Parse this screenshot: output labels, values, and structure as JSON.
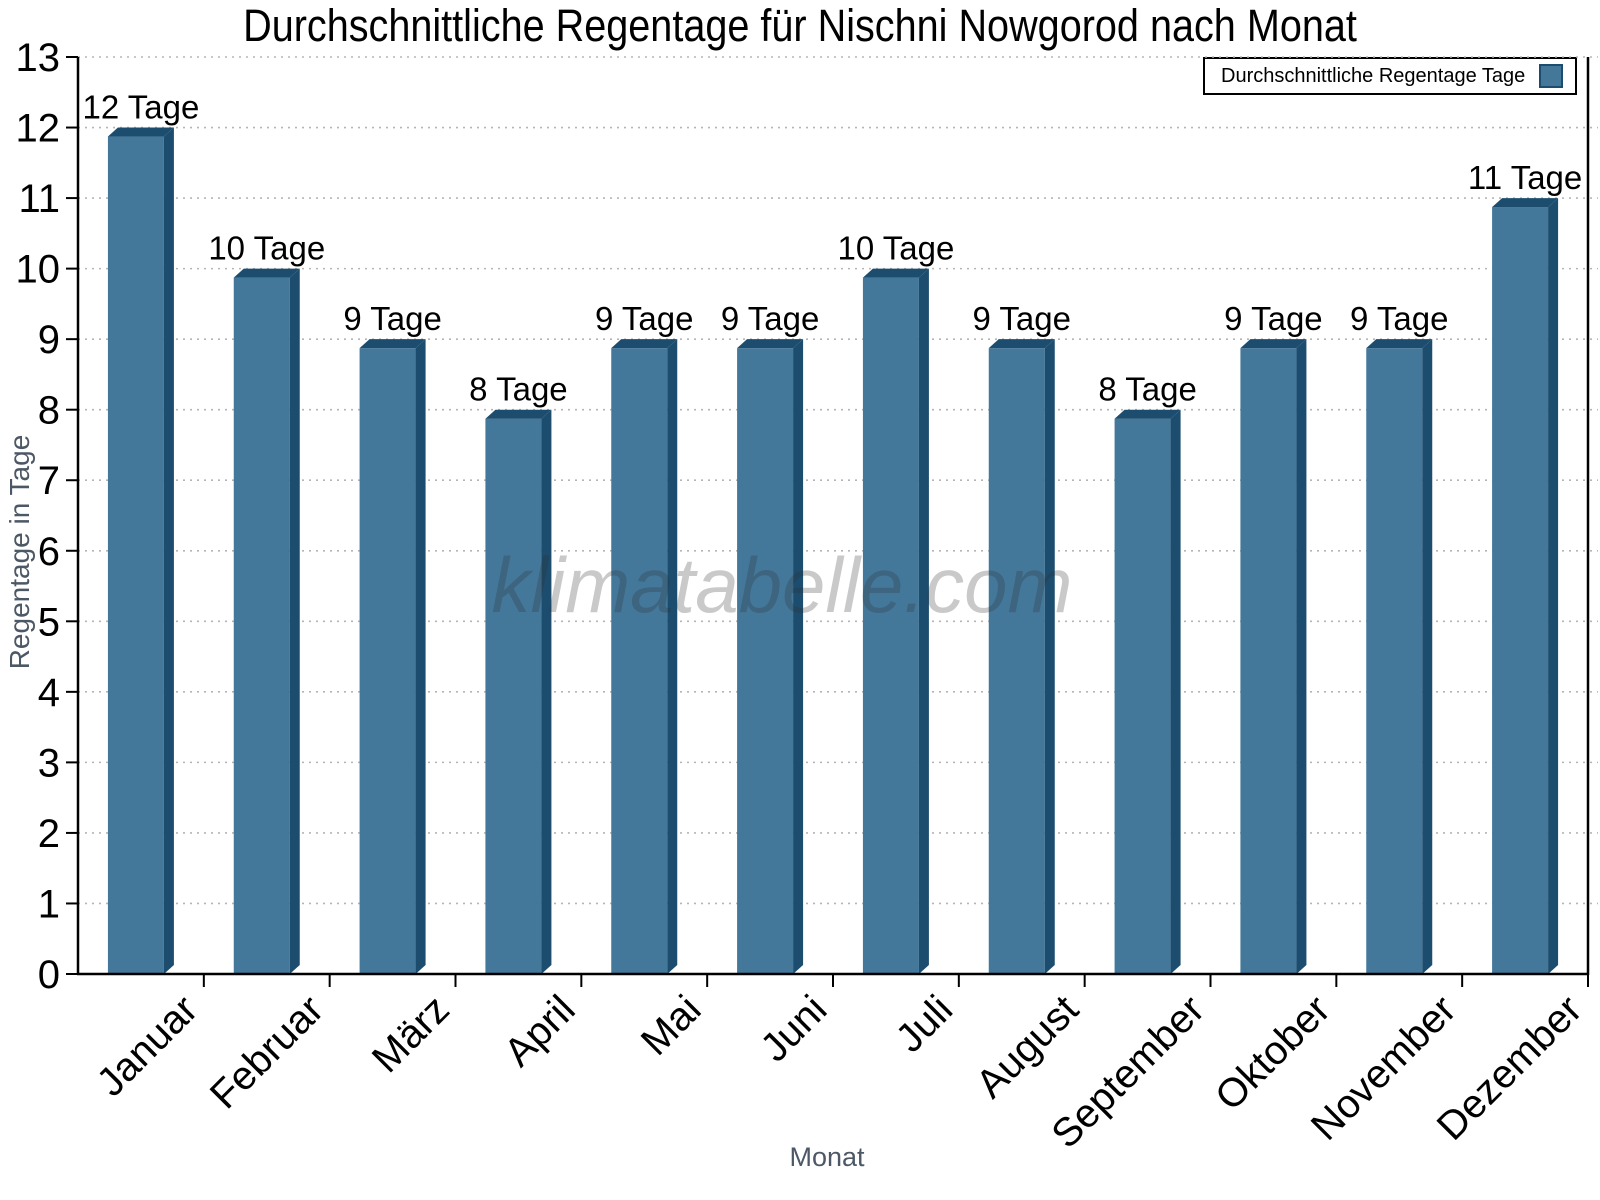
{
  "watermark": "klimatabelle.com",
  "colors": {
    "bar_face": "#44789B",
    "bar_edge": "#1C4D6E",
    "grid": "#b5b5b5",
    "axis": "#000000",
    "tick_label": "#000000",
    "axis_title": "#4d5866",
    "watermark": "rgba(45,45,45,0.26)"
  },
  "chart_data": {
    "type": "bar",
    "title": "Durchschnittliche Regentage für Nischni Nowgorod nach Monat",
    "xlabel": "Monat",
    "ylabel": "Regentage in Tage",
    "categories": [
      "Januar",
      "Februar",
      "März",
      "April",
      "Mai",
      "Juni",
      "Juli",
      "August",
      "September",
      "Oktober",
      "November",
      "Dezember"
    ],
    "values": [
      12,
      10,
      9,
      8,
      9,
      9,
      10,
      9,
      8,
      9,
      9,
      11
    ],
    "bar_labels": [
      "12 Tage",
      "10 Tage",
      "9 Tage",
      "8 Tage",
      "9 Tage",
      "9 Tage",
      "10 Tage",
      "9 Tage",
      "8 Tage",
      "9 Tage",
      "9 Tage",
      "11 Tage"
    ],
    "unit_suffix": "Tage",
    "ylim": [
      0,
      13
    ],
    "ytick_interval": 1,
    "grid": "horizontal-dotted",
    "legend": {
      "label": "Durchschnittliche Regentage Tage",
      "position": "top-right",
      "swatch_color": "#44789B"
    }
  }
}
